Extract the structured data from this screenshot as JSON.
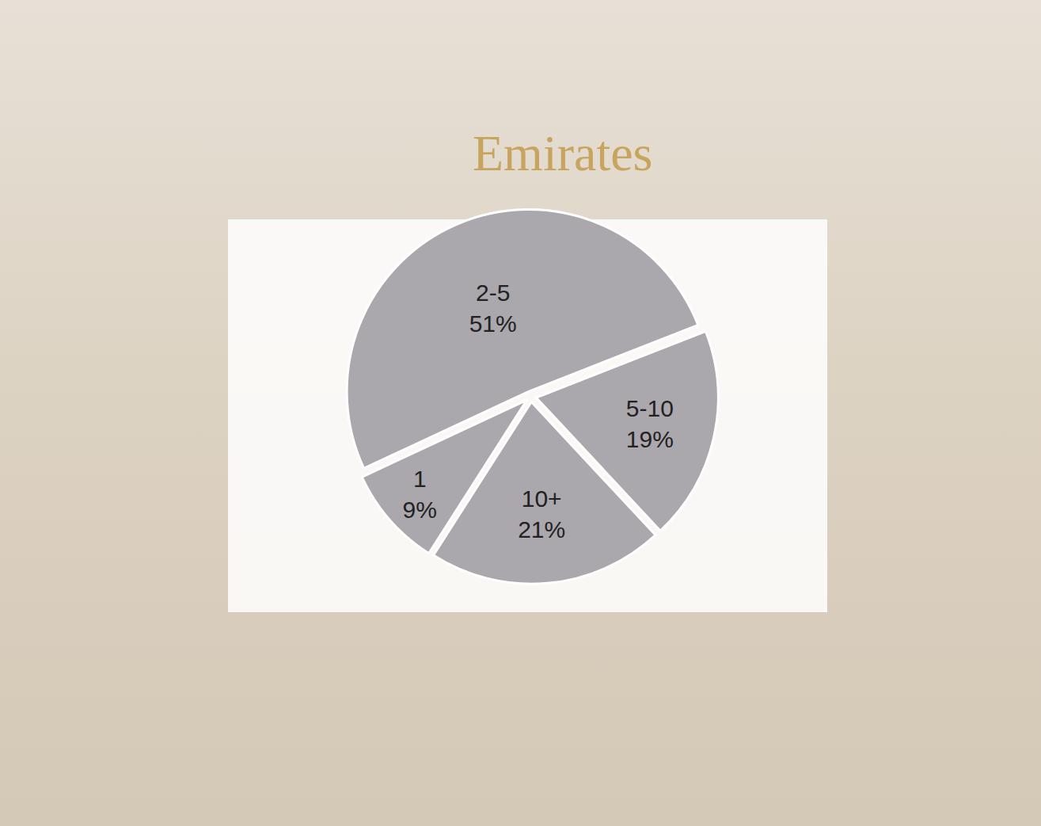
{
  "chart_data": {
    "type": "pie",
    "annotations": [
      "Emirates"
    ],
    "categories": [
      "2-5",
      "5-10",
      "10+",
      "1"
    ],
    "values": [
      51,
      19,
      21,
      9
    ],
    "value_labels": [
      "51%",
      "19%",
      "21%",
      "9%"
    ],
    "color": "#aaa7ad",
    "data_labels": true
  }
}
